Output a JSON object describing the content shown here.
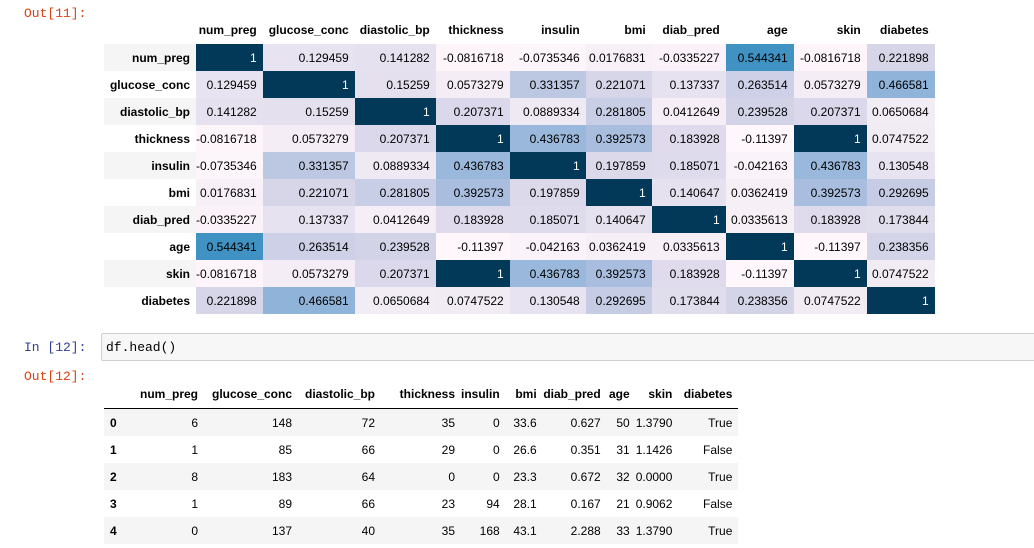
{
  "prompts": {
    "out11": "Out[11]:",
    "in12": "In [12]:",
    "out12": "Out[12]:"
  },
  "code": "df.head()",
  "corr_table": {
    "columns": [
      "num_preg",
      "glucose_conc",
      "diastolic_bp",
      "thickness",
      "insulin",
      "bmi",
      "diab_pred",
      "age",
      "skin",
      "diabetes"
    ],
    "rows": [
      {
        "label": "num_preg",
        "values": [
          1,
          0.129459,
          0.141282,
          -0.0816718,
          -0.0735346,
          0.0176831,
          -0.0335227,
          0.544341,
          -0.0816718,
          0.221898
        ],
        "text": [
          "1",
          "0.129459",
          "0.141282",
          "-0.0816718",
          "-0.0735346",
          "0.0176831",
          "-0.0335227",
          "0.544341",
          "-0.0816718",
          "0.221898"
        ]
      },
      {
        "label": "glucose_conc",
        "values": [
          0.129459,
          1,
          0.15259,
          0.0573279,
          0.331357,
          0.221071,
          0.137337,
          0.263514,
          0.0573279,
          0.466581
        ],
        "text": [
          "0.129459",
          "1",
          "0.15259",
          "0.0573279",
          "0.331357",
          "0.221071",
          "0.137337",
          "0.263514",
          "0.0573279",
          "0.466581"
        ]
      },
      {
        "label": "diastolic_bp",
        "values": [
          0.141282,
          0.15259,
          1,
          0.207371,
          0.0889334,
          0.281805,
          0.0412649,
          0.239528,
          0.207371,
          0.0650684
        ],
        "text": [
          "0.141282",
          "0.15259",
          "1",
          "0.207371",
          "0.0889334",
          "0.281805",
          "0.0412649",
          "0.239528",
          "0.207371",
          "0.0650684"
        ]
      },
      {
        "label": "thickness",
        "values": [
          -0.0816718,
          0.0573279,
          0.207371,
          1,
          0.436783,
          0.392573,
          0.183928,
          -0.11397,
          1,
          0.0747522
        ],
        "text": [
          "-0.0816718",
          "0.0573279",
          "0.207371",
          "1",
          "0.436783",
          "0.392573",
          "0.183928",
          "-0.11397",
          "1",
          "0.0747522"
        ]
      },
      {
        "label": "insulin",
        "values": [
          -0.0735346,
          0.331357,
          0.0889334,
          0.436783,
          1,
          0.197859,
          0.185071,
          -0.042163,
          0.436783,
          0.130548
        ],
        "text": [
          "-0.0735346",
          "0.331357",
          "0.0889334",
          "0.436783",
          "1",
          "0.197859",
          "0.185071",
          "-0.042163",
          "0.436783",
          "0.130548"
        ]
      },
      {
        "label": "bmi",
        "values": [
          0.0176831,
          0.221071,
          0.281805,
          0.392573,
          0.197859,
          1,
          0.140647,
          0.0362419,
          0.392573,
          0.292695
        ],
        "text": [
          "0.0176831",
          "0.221071",
          "0.281805",
          "0.392573",
          "0.197859",
          "1",
          "0.140647",
          "0.0362419",
          "0.392573",
          "0.292695"
        ]
      },
      {
        "label": "diab_pred",
        "values": [
          -0.0335227,
          0.137337,
          0.0412649,
          0.183928,
          0.185071,
          0.140647,
          1,
          0.0335613,
          0.183928,
          0.173844
        ],
        "text": [
          "-0.0335227",
          "0.137337",
          "0.0412649",
          "0.183928",
          "0.185071",
          "0.140647",
          "1",
          "0.0335613",
          "0.183928",
          "0.173844"
        ]
      },
      {
        "label": "age",
        "values": [
          0.544341,
          0.263514,
          0.239528,
          -0.11397,
          -0.042163,
          0.0362419,
          0.0335613,
          1,
          -0.11397,
          0.238356
        ],
        "text": [
          "0.544341",
          "0.263514",
          "0.239528",
          "-0.11397",
          "-0.042163",
          "0.0362419",
          "0.0335613",
          "1",
          "-0.11397",
          "0.238356"
        ]
      },
      {
        "label": "skin",
        "values": [
          -0.0816718,
          0.0573279,
          0.207371,
          1,
          0.436783,
          0.392573,
          0.183928,
          -0.11397,
          1,
          0.0747522
        ],
        "text": [
          "-0.0816718",
          "0.0573279",
          "0.207371",
          "1",
          "0.436783",
          "0.392573",
          "0.183928",
          "-0.11397",
          "1",
          "0.0747522"
        ]
      },
      {
        "label": "diabetes",
        "values": [
          0.221898,
          0.466581,
          0.0650684,
          0.0747522,
          0.130548,
          0.292695,
          0.173844,
          0.238356,
          0.0747522,
          1
        ],
        "text": [
          "0.221898",
          "0.466581",
          "0.0650684",
          "0.0747522",
          "0.130548",
          "0.292695",
          "0.173844",
          "0.238356",
          "0.0747522",
          "1"
        ]
      }
    ],
    "colors": {
      "low": "#fdf4fa",
      "mid": "#c5cde6",
      "high_blue": "#3a8fc0",
      "max": "#023858"
    }
  },
  "head_table": {
    "columns": [
      "",
      "num_preg",
      "glucose_conc",
      "diastolic_bp",
      "thickness",
      "insulin",
      "bmi",
      "diab_pred",
      "age",
      "skin",
      "diabetes"
    ],
    "rows": [
      [
        "0",
        "6",
        "148",
        "72",
        "35",
        "0",
        "33.6",
        "0.627",
        "50",
        "1.3790",
        "True"
      ],
      [
        "1",
        "1",
        "85",
        "66",
        "29",
        "0",
        "26.6",
        "0.351",
        "31",
        "1.1426",
        "False"
      ],
      [
        "2",
        "8",
        "183",
        "64",
        "0",
        "0",
        "23.3",
        "0.672",
        "32",
        "0.0000",
        "True"
      ],
      [
        "3",
        "1",
        "89",
        "66",
        "23",
        "94",
        "28.1",
        "0.167",
        "21",
        "0.9062",
        "False"
      ],
      [
        "4",
        "0",
        "137",
        "40",
        "35",
        "168",
        "43.1",
        "2.288",
        "33",
        "1.3790",
        "True"
      ]
    ]
  }
}
